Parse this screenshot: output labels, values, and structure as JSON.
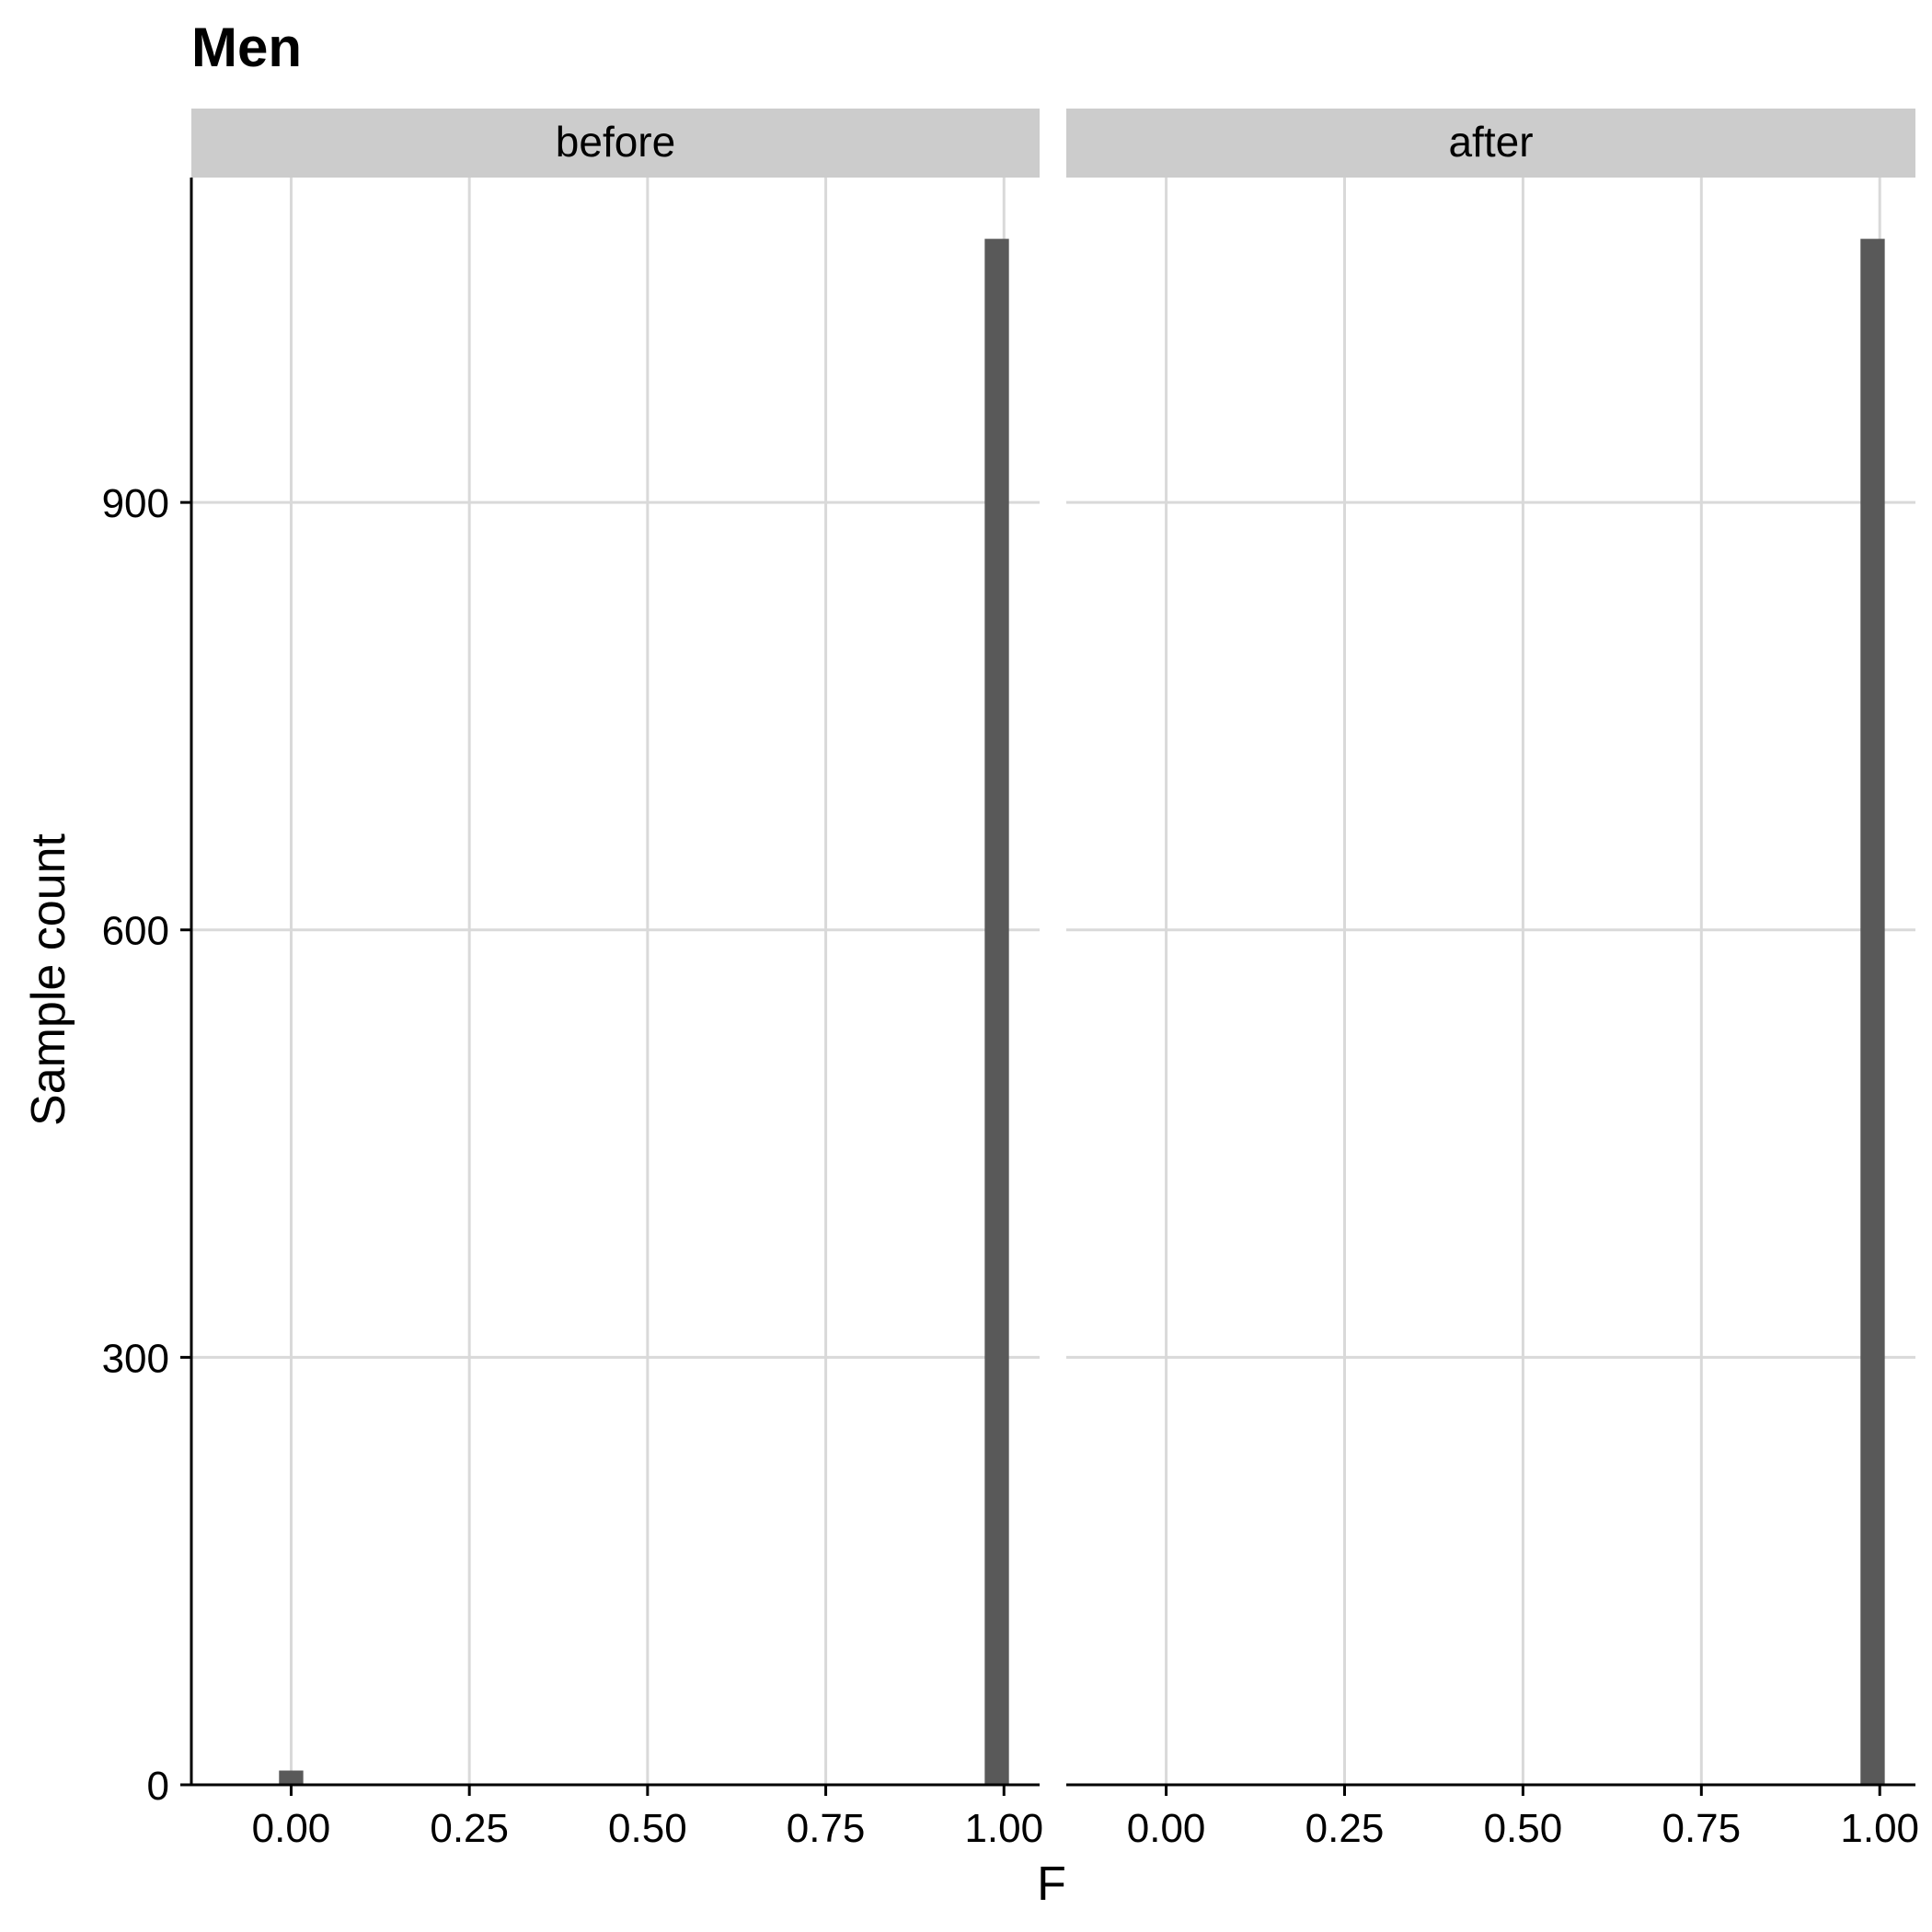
{
  "chart_data": {
    "type": "bar",
    "title": "Men",
    "xlabel": "F",
    "ylabel": "Sample count",
    "xlim": [
      -0.14,
      1.05
    ],
    "ylim": [
      0,
      1128
    ],
    "x_ticks": [
      0,
      0.25,
      0.5,
      0.75,
      1
    ],
    "x_tick_labels": [
      "0.00",
      "0.25",
      "0.50",
      "0.75",
      "1.00"
    ],
    "y_ticks": [
      0,
      300,
      600,
      900
    ],
    "y_tick_labels": [
      "0",
      "300",
      "600",
      "900"
    ],
    "grid": true,
    "bar_color": "#595959",
    "bin_width": 0.034,
    "panels": [
      {
        "label": "before",
        "bars": [
          {
            "x": 0.0,
            "y": 10
          },
          {
            "x": 0.99,
            "y": 1085
          }
        ]
      },
      {
        "label": "after",
        "bars": [
          {
            "x": 0.99,
            "y": 1085
          }
        ]
      }
    ]
  }
}
